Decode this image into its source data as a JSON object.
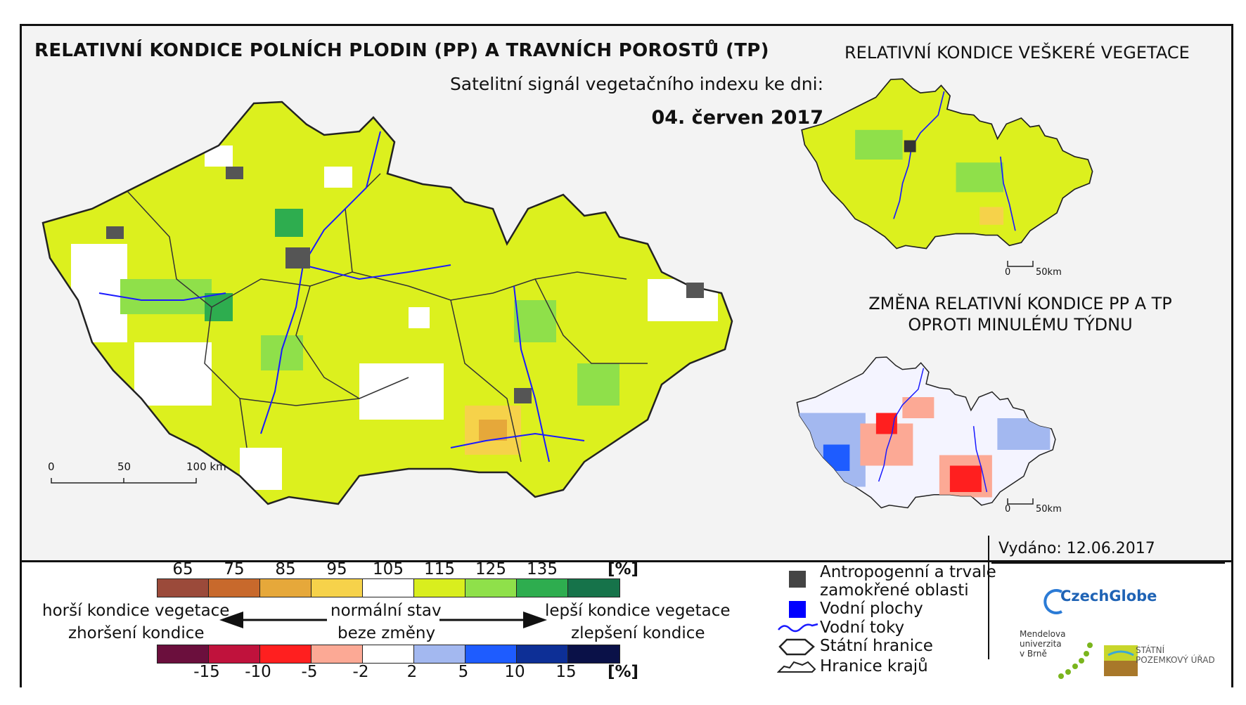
{
  "titles": {
    "main": "RELATIVNÍ KONDICE POLNÍCH PLODIN (PP) A TRAVNÍCH POROSTŮ (TP)",
    "subtitle": "Satelitní signál vegetačního indexu ke dni:",
    "date": "04. červen 2017",
    "right_top": "RELATIVNÍ KONDICE VEŠKERÉ VEGETACE",
    "right_bottom_line1": "ZMĚNA RELATIVNÍ KONDICE PP A TP",
    "right_bottom_line2": "OPROTI MINULÉMU TÝDNU"
  },
  "scales": {
    "main": [
      "0",
      "50",
      "100 km"
    ],
    "small_top": [
      "0",
      "50km"
    ],
    "small_bottom": [
      "0",
      "50km"
    ]
  },
  "legend": {
    "condition_ticks": [
      "65",
      "75",
      "85",
      "95",
      "105",
      "115",
      "125",
      "135"
    ],
    "condition_unit": "[%]",
    "condition_colors": [
      "#9b4a3a",
      "#c8692c",
      "#e6a83a",
      "#f6d24a",
      "#ffffff",
      "#d9ee1e",
      "#8fe04a",
      "#2ead4f",
      "#16734a"
    ],
    "change_ticks": [
      "-15",
      "-10",
      "-5",
      "-2",
      "2",
      "5",
      "10",
      "15"
    ],
    "change_unit": "[%]",
    "change_colors": [
      "#6b0f3d",
      "#c0123c",
      "#ff1f1f",
      "#fca995",
      "#ffffff",
      "#a3b8f0",
      "#1e5cff",
      "#0d2f96",
      "#0a1148"
    ],
    "worse_line1": "horší kondice vegetace",
    "worse_line2": "zhoršení kondice",
    "normal_line1": "normální stav",
    "normal_line2": "beze změny",
    "better_line1": "lepší kondice vegetace",
    "better_line2": "zlepšení kondice"
  },
  "key": {
    "anthropogenic_line1": "Antropogenní a trvale",
    "anthropogenic_line2": "zamokřené oblasti",
    "water_bodies": "Vodní plochy",
    "rivers": "Vodní toky",
    "state_border": "Státní hranice",
    "region_border": "Hranice krajů"
  },
  "issued": "Vydáno: 12.06.2017",
  "logos": {
    "czechglobe": "CzechGlobe",
    "mendel": [
      "Mendelova",
      "univerzita",
      "v Brně"
    ],
    "spu": [
      "STÁTNÍ",
      "POZEMKOVÝ ÚŘAD"
    ]
  },
  "map_colors": {
    "base": "#dcf01e",
    "good": "#8fe04a",
    "very_good": "#2ead4f",
    "normal": "#ffffff",
    "slightly_worse": "#f6d24a",
    "worse": "#e6a83a",
    "urban": "#555555",
    "river": "#1a1aff",
    "change_base": "#f4f4ff"
  }
}
